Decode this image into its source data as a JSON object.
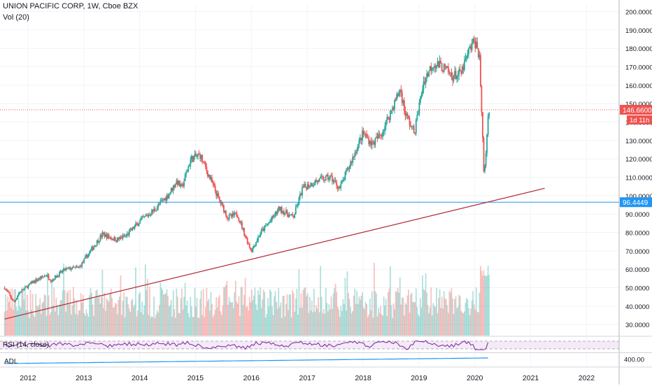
{
  "header": {
    "title": "UNION PACIFIC CORP, 1W, Cboe BZX",
    "volume_label": "Vol (20)"
  },
  "colors": {
    "up": "#26a69a",
    "down": "#ef5350",
    "last_price": "#ef5350",
    "support_line": "#2196f3",
    "trend_line": "#b22833",
    "rsi": "#7b1fa2",
    "rsi_band": "#f3e5f5",
    "adl": "#2196f3",
    "grid": "#f0f3fa",
    "axis_text": "#131722"
  },
  "price_pane": {
    "last_price_label": "146.6600",
    "countdown_label": "1d 11h",
    "support_label": "96.4449"
  },
  "rsi_pane": {
    "label": "RSI (14, close)"
  },
  "adl_pane": {
    "label": "ADL",
    "axis_label": "400.00"
  },
  "chart_data": {
    "type": "candlestick",
    "symbol": "UNION PACIFIC CORP",
    "interval": "1W",
    "exchange": "Cboe BZX",
    "x_range": [
      "2011-07",
      "2022-08"
    ],
    "y_range": [
      24,
      204
    ],
    "x_tick_labels": [
      "2012",
      "2013",
      "2014",
      "2015",
      "2016",
      "2017",
      "2018",
      "2019",
      "2020",
      "2021",
      "2022"
    ],
    "y_tick_labels": [
      "30.0000",
      "40.0000",
      "50.0000",
      "60.0000",
      "70.0000",
      "80.0000",
      "90.0000",
      "100.0000",
      "110.0000",
      "120.0000",
      "130.0000",
      "140.0000",
      "150.0000",
      "160.0000",
      "170.0000",
      "180.0000",
      "190.0000",
      "200.0000"
    ],
    "price_path": [
      [
        "2011-08",
        50
      ],
      [
        "2011-10",
        42
      ],
      [
        "2011-11",
        47
      ],
      [
        "2012-02",
        53
      ],
      [
        "2012-05",
        57
      ],
      [
        "2012-06",
        54
      ],
      [
        "2012-09",
        60
      ],
      [
        "2012-12",
        61
      ],
      [
        "2013-03",
        72
      ],
      [
        "2013-05",
        79
      ],
      [
        "2013-08",
        76
      ],
      [
        "2013-10",
        78
      ],
      [
        "2014-01",
        86
      ],
      [
        "2014-04",
        92
      ],
      [
        "2014-07",
        100
      ],
      [
        "2014-09",
        108
      ],
      [
        "2014-10",
        104
      ],
      [
        "2014-12",
        120
      ],
      [
        "2015-02",
        122
      ],
      [
        "2015-04",
        110
      ],
      [
        "2015-06",
        98
      ],
      [
        "2015-08",
        88
      ],
      [
        "2015-10",
        90
      ],
      [
        "2015-12",
        76
      ],
      [
        "2016-01",
        70
      ],
      [
        "2016-03",
        80
      ],
      [
        "2016-05",
        86
      ],
      [
        "2016-07",
        93
      ],
      [
        "2016-10",
        88
      ],
      [
        "2016-12",
        104
      ],
      [
        "2017-03",
        108
      ],
      [
        "2017-06",
        110
      ],
      [
        "2017-08",
        104
      ],
      [
        "2017-10",
        116
      ],
      [
        "2018-01",
        134
      ],
      [
        "2018-03",
        128
      ],
      [
        "2018-05",
        134
      ],
      [
        "2018-07",
        146
      ],
      [
        "2018-09",
        158
      ],
      [
        "2018-10",
        145
      ],
      [
        "2018-12",
        134
      ],
      [
        "2019-02",
        162
      ],
      [
        "2019-04",
        172
      ],
      [
        "2019-06",
        170
      ],
      [
        "2019-08",
        165
      ],
      [
        "2019-10",
        166
      ],
      [
        "2019-12",
        180
      ],
      [
        "2020-01",
        184
      ],
      [
        "2020-02",
        176
      ],
      [
        "2020-03",
        110
      ],
      [
        "2020-04",
        146.66
      ]
    ],
    "support_level": 96.4449,
    "last_price": 146.66,
    "trend_line": [
      [
        "2011-08",
        33
      ],
      [
        "2021-04",
        104
      ]
    ],
    "volume": {
      "label": "Vol (20)",
      "note": "red/green volume histogram along the bottom of the price pane"
    },
    "rsi": {
      "label": "RSI (14, close)"
    },
    "adl": {
      "label": "ADL",
      "last_value_label": "400.00"
    }
  }
}
